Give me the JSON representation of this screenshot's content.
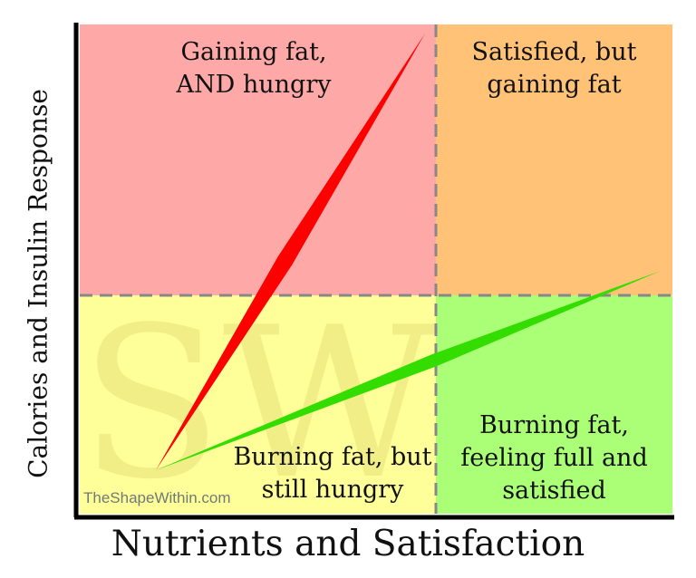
{
  "axes": {
    "y_label": "Calories and Insulin Response",
    "x_label": "Nutrients and Satisfaction"
  },
  "quadrants": {
    "top_left": {
      "text": "Gaining fat,\nAND hungry",
      "color": "#ffa8a8"
    },
    "top_right": {
      "text": "Satisfied, but\ngaining fat",
      "color": "#ffc277"
    },
    "bottom_left": {
      "text": "Burning fat, but\nstill hungry",
      "color": "#ffff99"
    },
    "bottom_right": {
      "text": "Burning fat,\nfeeling full and\nsatisfied",
      "color": "#aaff77"
    }
  },
  "lines": {
    "red": {
      "color": "#ff0000"
    },
    "green": {
      "color": "#33dd00"
    }
  },
  "watermark": {
    "logo_letters": "SW",
    "site": "TheShapeWithin.com"
  }
}
